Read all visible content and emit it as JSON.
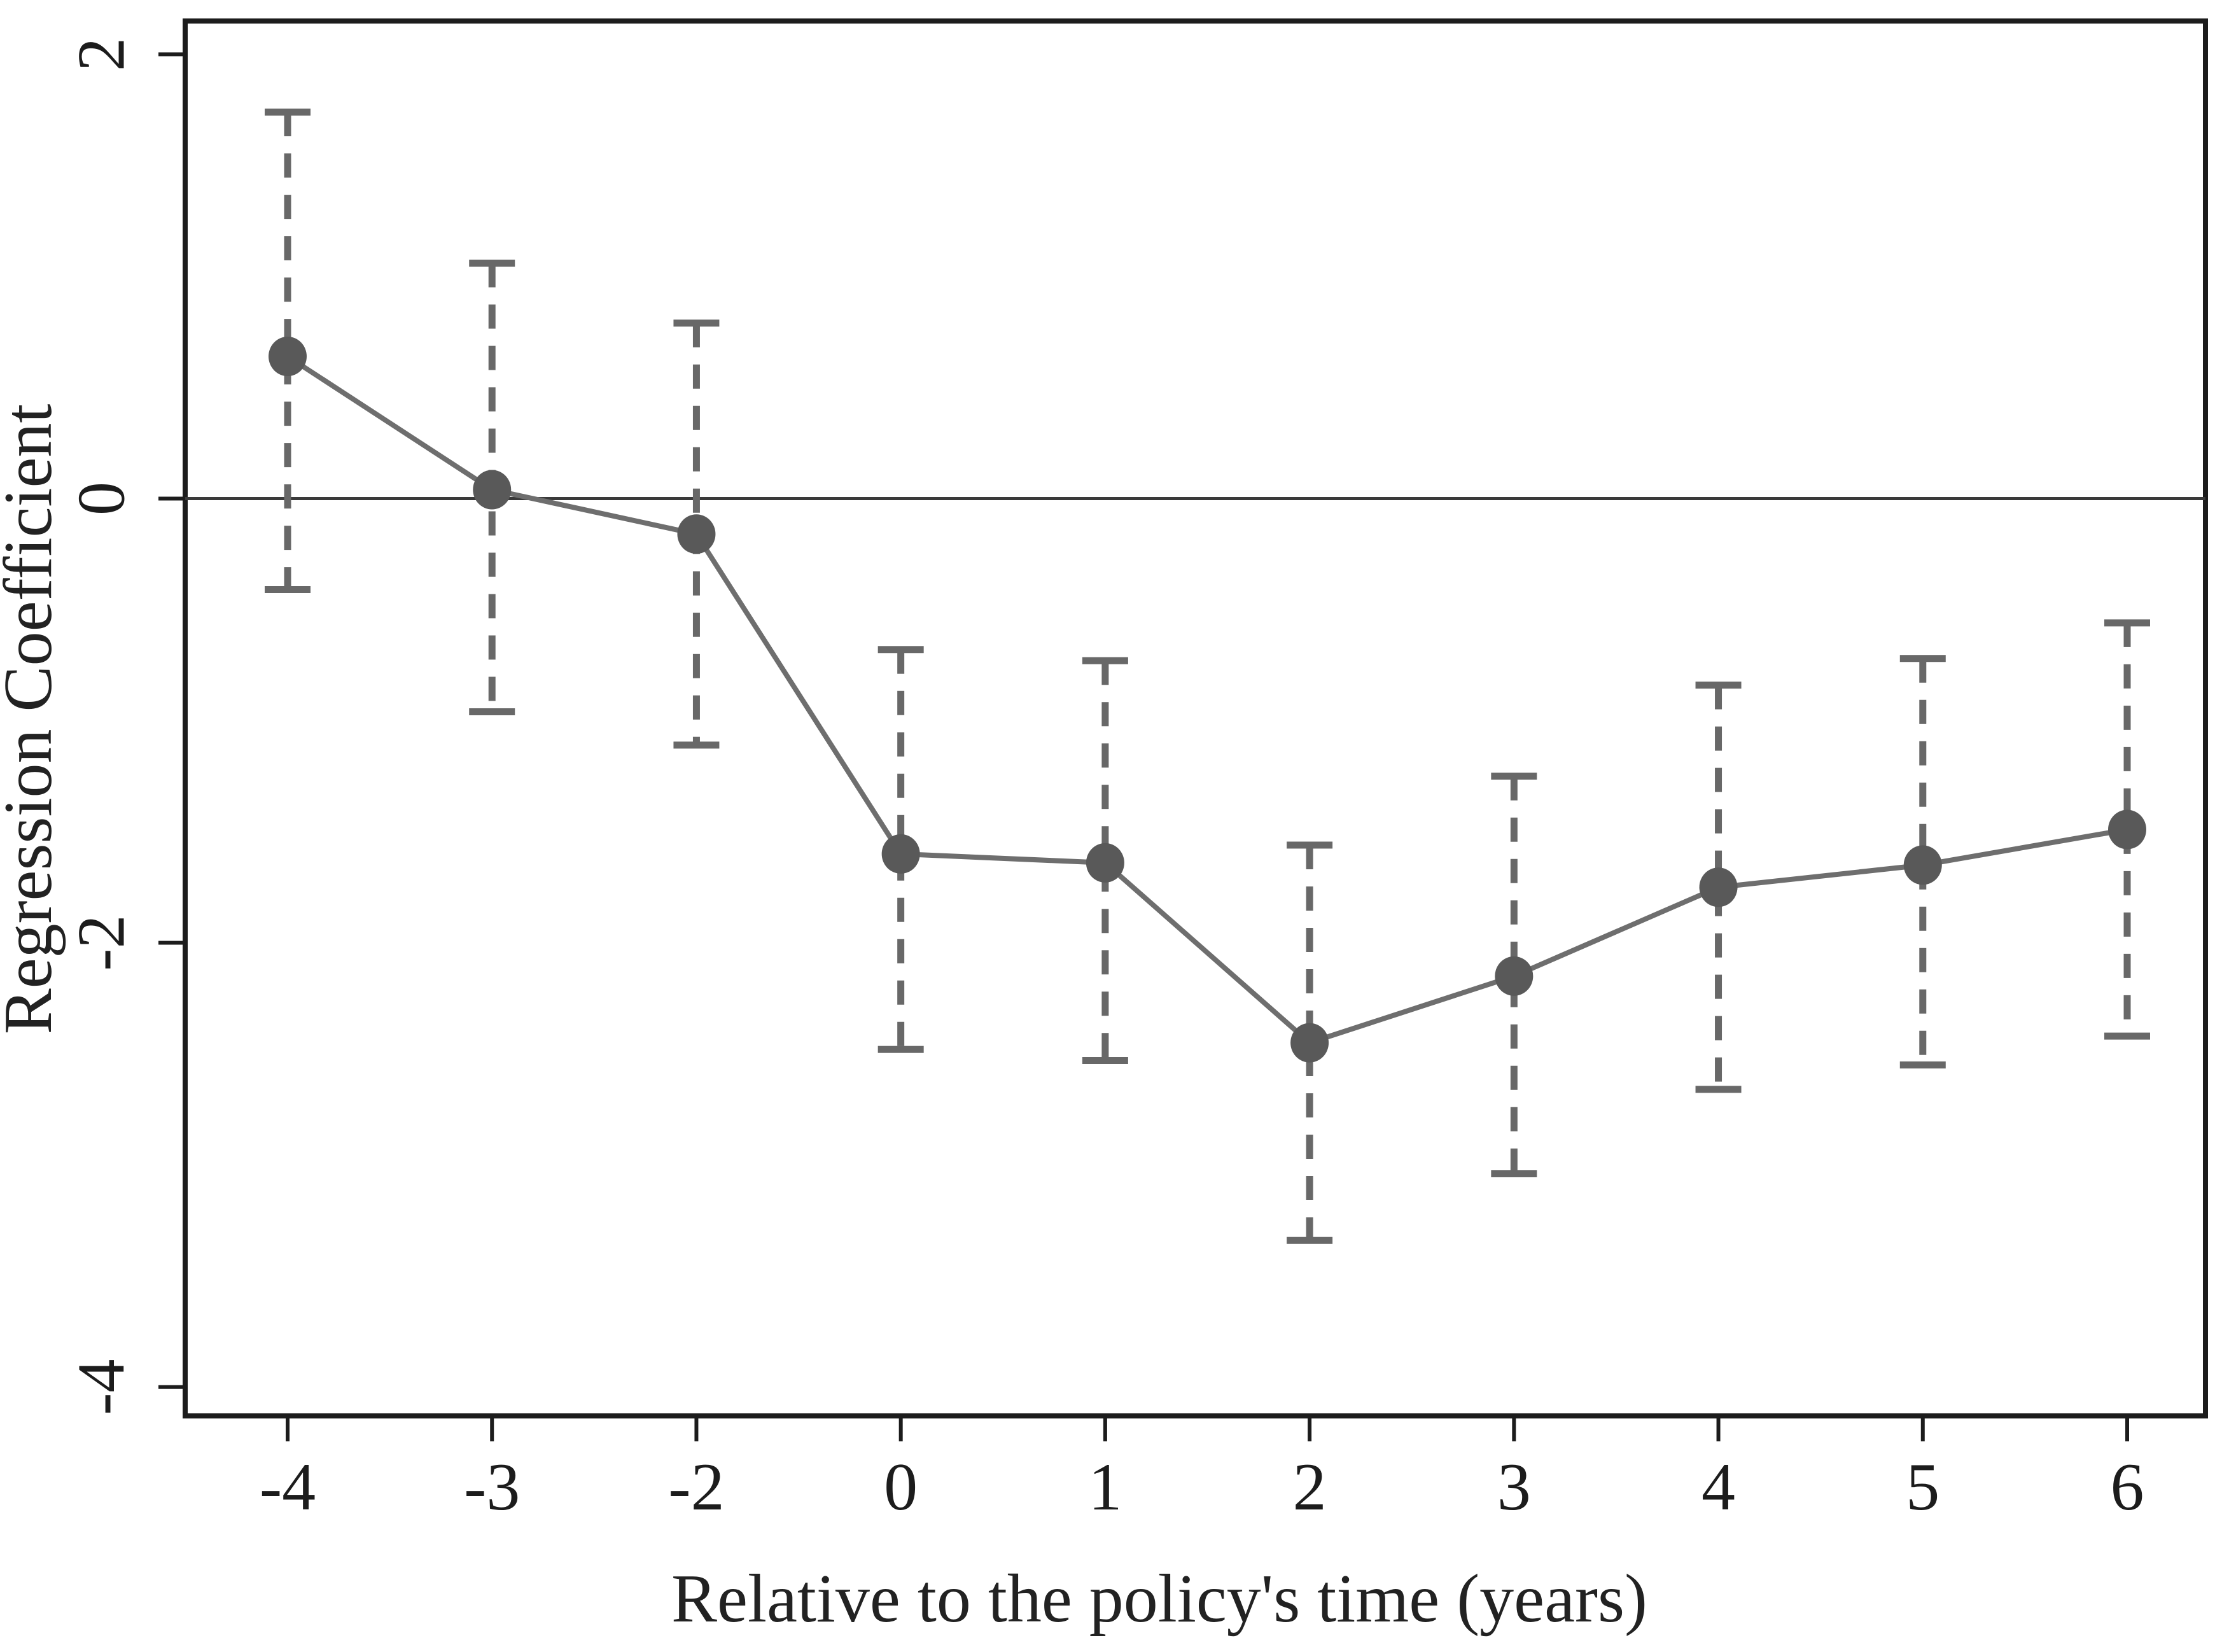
{
  "chart_data": {
    "type": "line",
    "title": "",
    "xlabel": "Relative to the policy's time (years)",
    "ylabel": "Regression Coefficient",
    "categories": [
      "-4",
      "-3",
      "-2",
      "0",
      "1",
      "2",
      "3",
      "4",
      "5",
      "6"
    ],
    "series": [
      {
        "name": "regression-coefficient",
        "values": [
          0.64,
          0.04,
          -0.16,
          -1.6,
          -1.64,
          -2.45,
          -2.15,
          -1.75,
          -1.65,
          -1.49
        ]
      }
    ],
    "ci_upper": [
      1.74,
      1.06,
      0.79,
      -0.68,
      -0.73,
      -1.56,
      -1.25,
      -0.84,
      -0.72,
      -0.56
    ],
    "ci_lower": [
      -0.41,
      -0.96,
      -1.11,
      -2.48,
      -2.53,
      -3.34,
      -3.04,
      -2.66,
      -2.55,
      -2.42
    ],
    "yticks": [
      2,
      0,
      -2,
      -4
    ],
    "ylim": [
      -4.13,
      2.15
    ],
    "zero_line": 0,
    "grid": false,
    "legend": false,
    "marker": "circle",
    "ci_style": "dashed",
    "colors": {
      "point": "#595959",
      "line": "#6e6e6e",
      "ci": "#686868",
      "axis": "#1c1c1c",
      "zero_line": "#3a3a3a",
      "background": "#ffffff"
    }
  }
}
